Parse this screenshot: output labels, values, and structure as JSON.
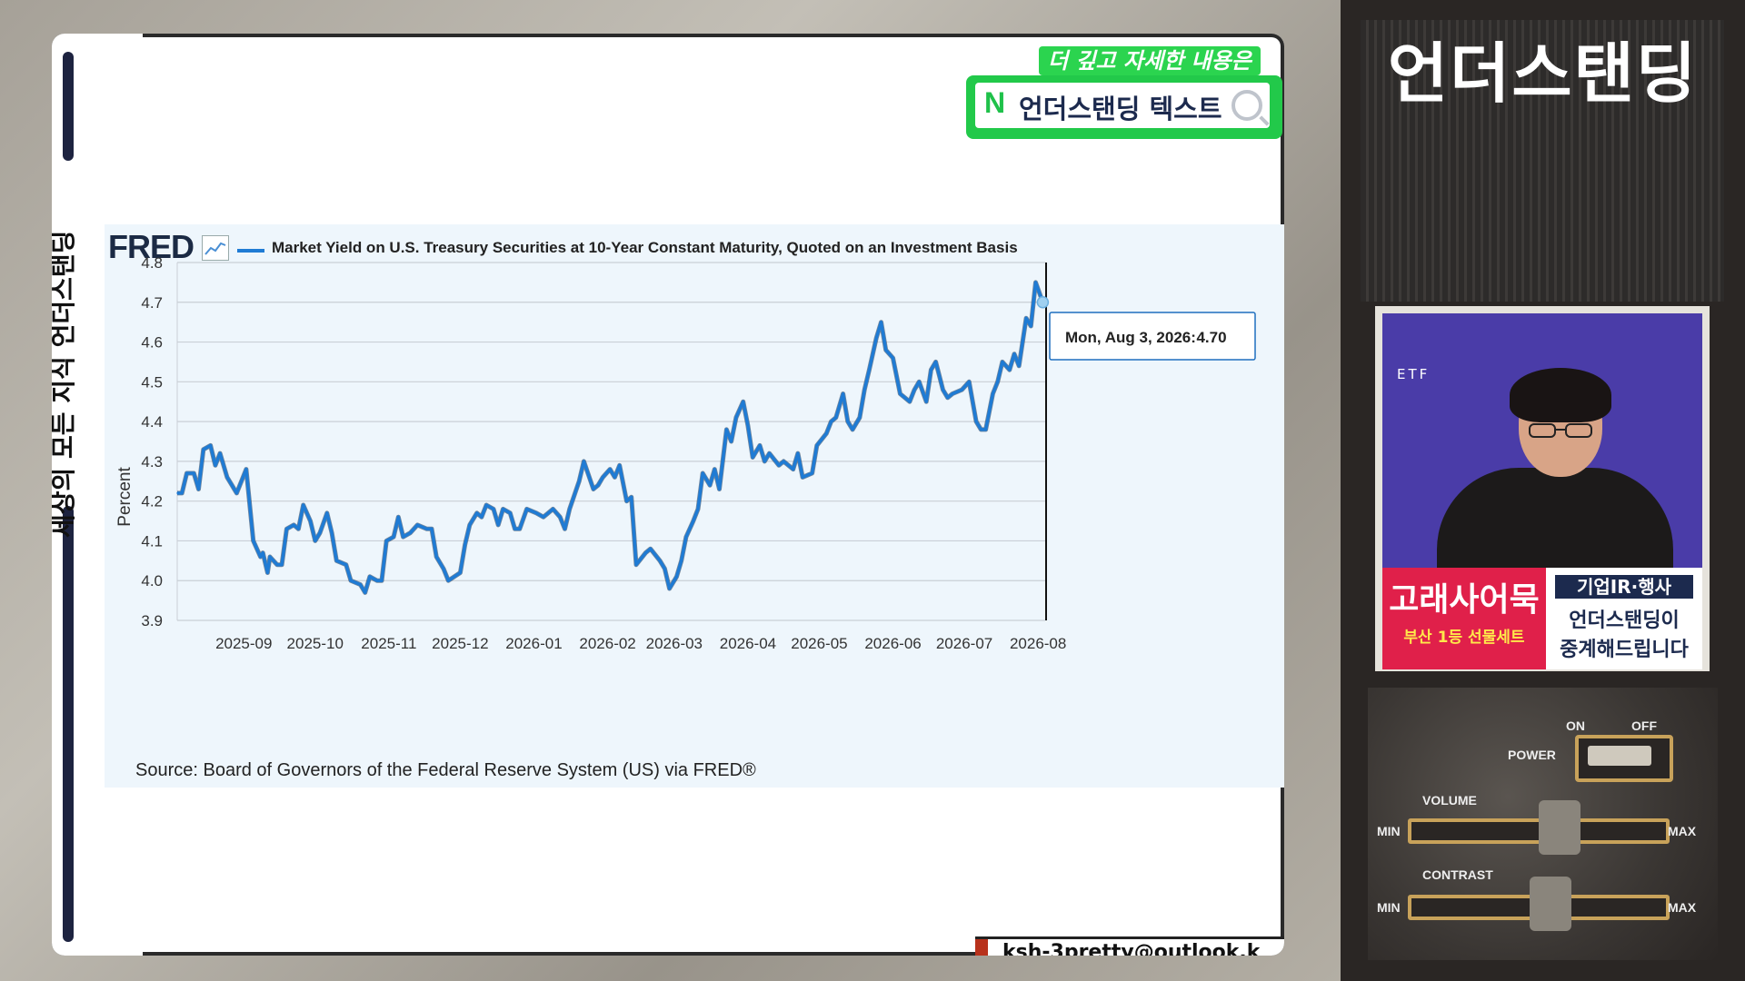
{
  "side_rail": {
    "text": "세상의 모든 지식  언더스탠딩"
  },
  "promo": {
    "tagline": "더 깊고 자세한 내용은",
    "n_mark": "N",
    "label": "언더스탠딩 텍스트"
  },
  "fred": {
    "logo": "FRED",
    "source": "Source: Board of Governors of the Federal Reserve System (US) via FRED®",
    "tooltip_label": "Mon, Aug 3, 2026:",
    "tooltip_value": "4.70"
  },
  "email": {
    "text": "ksh-3pretty@outlook.k"
  },
  "side": {
    "title": "언더스탠딩",
    "cam_label": "ETF",
    "ad_left_title": "고래사어묵",
    "ad_left_sub": "부산 1등 선물세트",
    "ad_right_line1": "기업IR·행사",
    "ad_right_line2": "언더스탠딩이",
    "ad_right_line3": "중계해드립니다",
    "power_label": "POWER",
    "on_label": "ON",
    "off_label": "OFF",
    "volume_label": "VOLUME",
    "contrast_label": "CONTRAST",
    "min_label": "MIN",
    "max_label": "MAX"
  },
  "chart_data": {
    "type": "line",
    "title": "Market Yield on U.S. Treasury Securities at 10-Year Constant Maturity, Quoted on an Investment Basis",
    "xlabel": "",
    "ylabel": "Percent",
    "ylim": [
      3.9,
      4.8
    ],
    "yticks": [
      "3.9",
      "4.0",
      "4.1",
      "4.2",
      "4.3",
      "4.4",
      "4.5",
      "4.6",
      "4.7",
      "4.8"
    ],
    "xlim": [
      "2025-08-04",
      "2026-08-04"
    ],
    "xticks": [
      {
        "date": "2025-09-01",
        "label": "2025-09"
      },
      {
        "date": "2025-10-01",
        "label": "2025-10"
      },
      {
        "date": "2025-11-01",
        "label": "2025-11"
      },
      {
        "date": "2025-12-01",
        "label": "2025-12"
      },
      {
        "date": "2026-01-01",
        "label": "2026-01"
      },
      {
        "date": "2026-02-01",
        "label": "2026-02"
      },
      {
        "date": "2026-03-01",
        "label": "2026-03"
      },
      {
        "date": "2026-04-01",
        "label": "2026-04"
      },
      {
        "date": "2026-05-01",
        "label": "2026-05"
      },
      {
        "date": "2026-06-01",
        "label": "2026-06"
      },
      {
        "date": "2026-07-01",
        "label": "2026-07"
      },
      {
        "date": "2026-08-01",
        "label": "2026-08"
      }
    ],
    "grid": true,
    "legend": "top-left",
    "line_color": "#1f7bd4",
    "highlight": {
      "date": "2026-08-03",
      "value": 4.7
    },
    "series": [
      {
        "name": "Market Yield on U.S. Treasury Securities at 10-Year Constant Maturity, Quoted on an Investment Basis",
        "points": [
          [
            "2025-08-04",
            4.22
          ],
          [
            "2025-08-06",
            4.22
          ],
          [
            "2025-08-08",
            4.27
          ],
          [
            "2025-08-11",
            4.27
          ],
          [
            "2025-08-13",
            4.23
          ],
          [
            "2025-08-15",
            4.33
          ],
          [
            "2025-08-18",
            4.34
          ],
          [
            "2025-08-20",
            4.29
          ],
          [
            "2025-08-22",
            4.32
          ],
          [
            "2025-08-25",
            4.26
          ],
          [
            "2025-08-27",
            4.24
          ],
          [
            "2025-08-29",
            4.22
          ],
          [
            "2025-09-02",
            4.28
          ],
          [
            "2025-09-05",
            4.1
          ],
          [
            "2025-09-08",
            4.06
          ],
          [
            "2025-09-09",
            4.07
          ],
          [
            "2025-09-11",
            4.02
          ],
          [
            "2025-09-12",
            4.06
          ],
          [
            "2025-09-15",
            4.04
          ],
          [
            "2025-09-17",
            4.04
          ],
          [
            "2025-09-19",
            4.13
          ],
          [
            "2025-09-22",
            4.14
          ],
          [
            "2025-09-24",
            4.13
          ],
          [
            "2025-09-26",
            4.19
          ],
          [
            "2025-09-29",
            4.15
          ],
          [
            "2025-10-01",
            4.1
          ],
          [
            "2025-10-03",
            4.12
          ],
          [
            "2025-10-06",
            4.17
          ],
          [
            "2025-10-08",
            4.12
          ],
          [
            "2025-10-10",
            4.05
          ],
          [
            "2025-10-14",
            4.04
          ],
          [
            "2025-10-16",
            4.0
          ],
          [
            "2025-10-20",
            3.99
          ],
          [
            "2025-10-22",
            3.97
          ],
          [
            "2025-10-24",
            4.01
          ],
          [
            "2025-10-27",
            4.0
          ],
          [
            "2025-10-29",
            4.0
          ],
          [
            "2025-10-31",
            4.1
          ],
          [
            "2025-11-03",
            4.11
          ],
          [
            "2025-11-05",
            4.16
          ],
          [
            "2025-11-07",
            4.11
          ],
          [
            "2025-11-10",
            4.12
          ],
          [
            "2025-11-13",
            4.14
          ],
          [
            "2025-11-17",
            4.13
          ],
          [
            "2025-11-19",
            4.13
          ],
          [
            "2025-11-21",
            4.06
          ],
          [
            "2025-11-24",
            4.03
          ],
          [
            "2025-11-26",
            4.0
          ],
          [
            "2025-12-01",
            4.02
          ],
          [
            "2025-12-03",
            4.09
          ],
          [
            "2025-12-05",
            4.14
          ],
          [
            "2025-12-08",
            4.17
          ],
          [
            "2025-12-10",
            4.16
          ],
          [
            "2025-12-12",
            4.19
          ],
          [
            "2025-12-15",
            4.18
          ],
          [
            "2025-12-17",
            4.14
          ],
          [
            "2025-12-19",
            4.18
          ],
          [
            "2025-12-22",
            4.17
          ],
          [
            "2025-12-24",
            4.13
          ],
          [
            "2025-12-26",
            4.13
          ],
          [
            "2025-12-29",
            4.18
          ],
          [
            "2026-01-02",
            4.17
          ],
          [
            "2026-01-05",
            4.16
          ],
          [
            "2026-01-07",
            4.17
          ],
          [
            "2026-01-09",
            4.18
          ],
          [
            "2026-01-12",
            4.16
          ],
          [
            "2026-01-14",
            4.13
          ],
          [
            "2026-01-16",
            4.18
          ],
          [
            "2026-01-20",
            4.25
          ],
          [
            "2026-01-22",
            4.3
          ],
          [
            "2026-01-26",
            4.23
          ],
          [
            "2026-01-28",
            4.24
          ],
          [
            "2026-01-30",
            4.26
          ],
          [
            "2026-02-02",
            4.28
          ],
          [
            "2026-02-04",
            4.26
          ],
          [
            "2026-02-06",
            4.29
          ],
          [
            "2026-02-09",
            4.2
          ],
          [
            "2026-02-11",
            4.21
          ],
          [
            "2026-02-13",
            4.04
          ],
          [
            "2026-02-17",
            4.07
          ],
          [
            "2026-02-19",
            4.08
          ],
          [
            "2026-02-23",
            4.05
          ],
          [
            "2026-02-25",
            4.03
          ],
          [
            "2026-02-27",
            3.98
          ],
          [
            "2026-03-02",
            4.01
          ],
          [
            "2026-03-04",
            4.05
          ],
          [
            "2026-03-06",
            4.11
          ],
          [
            "2026-03-09",
            4.15
          ],
          [
            "2026-03-11",
            4.18
          ],
          [
            "2026-03-13",
            4.27
          ],
          [
            "2026-03-16",
            4.24
          ],
          [
            "2026-03-18",
            4.28
          ],
          [
            "2026-03-20",
            4.23
          ],
          [
            "2026-03-23",
            4.38
          ],
          [
            "2026-03-25",
            4.35
          ],
          [
            "2026-03-27",
            4.41
          ],
          [
            "2026-03-30",
            4.45
          ],
          [
            "2026-04-01",
            4.39
          ],
          [
            "2026-04-03",
            4.31
          ],
          [
            "2026-04-06",
            4.34
          ],
          [
            "2026-04-08",
            4.3
          ],
          [
            "2026-04-10",
            4.32
          ],
          [
            "2026-04-14",
            4.29
          ],
          [
            "2026-04-16",
            4.3
          ],
          [
            "2026-04-20",
            4.28
          ],
          [
            "2026-04-22",
            4.32
          ],
          [
            "2026-04-24",
            4.26
          ],
          [
            "2026-04-28",
            4.27
          ],
          [
            "2026-04-30",
            4.34
          ],
          [
            "2026-05-04",
            4.37
          ],
          [
            "2026-05-06",
            4.4
          ],
          [
            "2026-05-08",
            4.41
          ],
          [
            "2026-05-11",
            4.47
          ],
          [
            "2026-05-13",
            4.4
          ],
          [
            "2026-05-15",
            4.38
          ],
          [
            "2026-05-18",
            4.41
          ],
          [
            "2026-05-20",
            4.48
          ],
          [
            "2026-05-22",
            4.53
          ],
          [
            "2026-05-25",
            4.61
          ],
          [
            "2026-05-27",
            4.65
          ],
          [
            "2026-05-29",
            4.58
          ],
          [
            "2026-06-01",
            4.56
          ],
          [
            "2026-06-04",
            4.47
          ],
          [
            "2026-06-08",
            4.45
          ],
          [
            "2026-06-10",
            4.48
          ],
          [
            "2026-06-12",
            4.5
          ],
          [
            "2026-06-15",
            4.45
          ],
          [
            "2026-06-17",
            4.53
          ],
          [
            "2026-06-19",
            4.55
          ],
          [
            "2026-06-22",
            4.48
          ],
          [
            "2026-06-24",
            4.46
          ],
          [
            "2026-06-26",
            4.47
          ],
          [
            "2026-06-30",
            4.48
          ],
          [
            "2026-07-03",
            4.5
          ],
          [
            "2026-07-06",
            4.4
          ],
          [
            "2026-07-08",
            4.38
          ],
          [
            "2026-07-10",
            4.38
          ],
          [
            "2026-07-13",
            4.47
          ],
          [
            "2026-07-15",
            4.5
          ],
          [
            "2026-07-17",
            4.55
          ],
          [
            "2026-07-20",
            4.53
          ],
          [
            "2026-07-22",
            4.57
          ],
          [
            "2026-07-24",
            4.54
          ],
          [
            "2026-07-27",
            4.66
          ],
          [
            "2026-07-29",
            4.64
          ],
          [
            "2026-07-31",
            4.75
          ],
          [
            "2026-08-03",
            4.7
          ]
        ]
      }
    ]
  }
}
